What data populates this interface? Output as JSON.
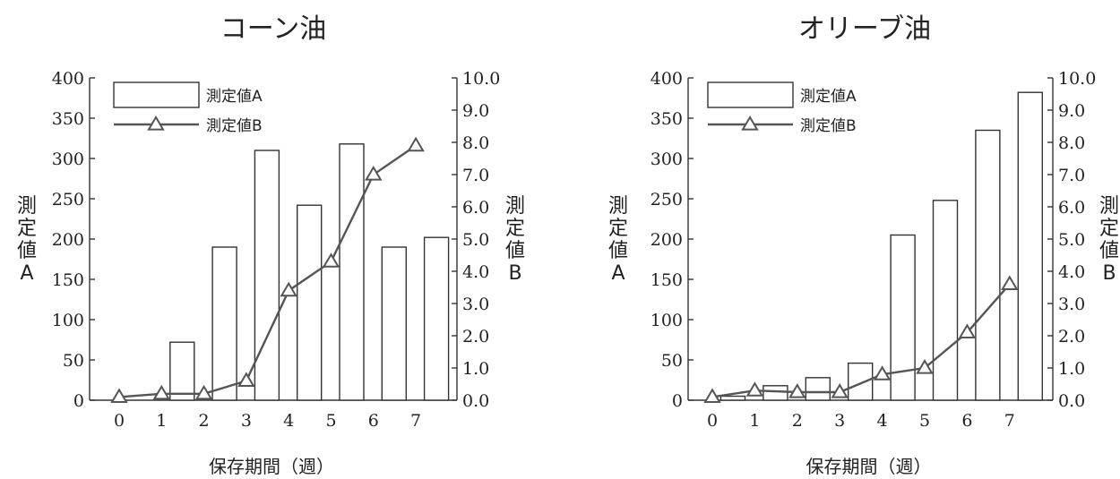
{
  "chart_data": [
    {
      "type": "bar+line",
      "title": "コーン油",
      "xlabel": "保存期間（週）",
      "ylabel_left": "測定値A",
      "ylabel_right": "測定値B",
      "categories": [
        "0",
        "1",
        "2",
        "3",
        "4",
        "5",
        "6",
        "7"
      ],
      "ylim_left": [
        0,
        400
      ],
      "yticks_left": [
        "0",
        "50",
        "100",
        "150",
        "200",
        "250",
        "300",
        "350",
        "400"
      ],
      "ylim_right": [
        0,
        10
      ],
      "yticks_right": [
        "0.0",
        "1.0",
        "2.0",
        "3.0",
        "4.0",
        "5.0",
        "6.0",
        "7.0",
        "8.0",
        "9.0",
        "10.0"
      ],
      "series": [
        {
          "name": "測定値A",
          "kind": "bar",
          "axis": "left",
          "values": [
            0,
            72,
            190,
            310,
            242,
            318,
            190,
            202
          ]
        },
        {
          "name": "測定値B",
          "kind": "line",
          "axis": "right",
          "marker": "triangle",
          "values": [
            0.1,
            0.2,
            0.2,
            0.6,
            3.4,
            4.3,
            7.0,
            7.9
          ]
        }
      ],
      "legend": "top-left",
      "grid": false
    },
    {
      "type": "bar+line",
      "title": "オリーブ油",
      "xlabel": "保存期間（週）",
      "ylabel_left": "測定値A",
      "ylabel_right": "測定値B",
      "categories": [
        "0",
        "1",
        "2",
        "3",
        "4",
        "5",
        "6",
        "7"
      ],
      "ylim_left": [
        0,
        400
      ],
      "yticks_left": [
        "0",
        "50",
        "100",
        "150",
        "200",
        "250",
        "300",
        "350",
        "400"
      ],
      "ylim_right": [
        0,
        10
      ],
      "yticks_right": [
        "0.0",
        "1.0",
        "2.0",
        "3.0",
        "4.0",
        "5.0",
        "6.0",
        "7.0",
        "8.0",
        "9.0",
        "10.0"
      ],
      "series": [
        {
          "name": "測定値A",
          "kind": "bar",
          "axis": "left",
          "values": [
            5,
            18,
            28,
            46,
            205,
            248,
            335,
            382
          ]
        },
        {
          "name": "測定値B",
          "kind": "line",
          "axis": "right",
          "marker": "triangle",
          "values": [
            0.1,
            0.3,
            0.25,
            0.25,
            0.8,
            1.0,
            2.1,
            3.6
          ]
        }
      ],
      "legend": "top-left",
      "grid": false
    }
  ]
}
